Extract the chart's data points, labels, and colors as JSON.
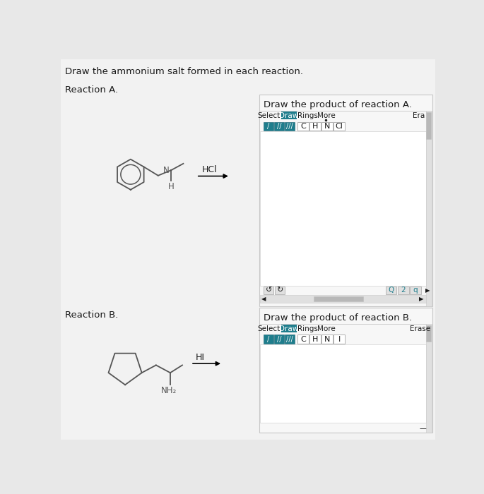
{
  "bg_color": "#e8e8e8",
  "panel_bg": "#f7f7f7",
  "left_bg": "#f2f2f2",
  "title": "Draw the ammonium salt formed in each reaction.",
  "reaction_a_label": "Reaction A.",
  "reaction_b_label": "Reaction B.",
  "panel_a_title": "Draw the product of reaction A.",
  "panel_b_title": "Draw the product of reaction B.",
  "hcl_label": "HCl",
  "hi_label": "HI",
  "erase_label_a": "Era",
  "erase_label_b": "Erase",
  "bond_buttons": [
    "/",
    "//",
    "///"
  ],
  "atom_buttons_a": [
    "C",
    "H",
    "N",
    "Cl"
  ],
  "atom_buttons_b": [
    "C",
    "H",
    "N",
    "I"
  ],
  "draw_btn_color": "#1e7d8c",
  "bond_bg": "#1e7d8c",
  "scrollbar_color": "#b8b8b8",
  "panel_border": "#c8c8c8",
  "btn_border": "#b0b0b0",
  "text_color": "#1a1a1a",
  "mol_color": "#555555",
  "light_gray": "#e0e0e0",
  "medium_gray": "#c0c0c0",
  "white": "#ffffff",
  "teal_dark": "#155f6e"
}
